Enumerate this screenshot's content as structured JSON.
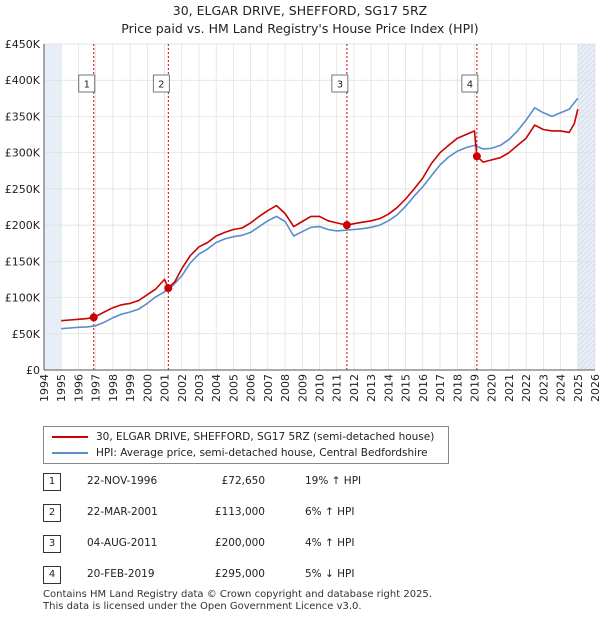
{
  "title_line1": "30, ELGAR DRIVE, SHEFFORD, SG17 5RZ",
  "title_line2": "Price paid vs. HM Land Registry's House Price Index (HPI)",
  "colors": {
    "property": "#cc0000",
    "hpi": "#5b8ccc",
    "marker": "#cc0000",
    "vline": "#cc0000",
    "shade": "#e8eef7"
  },
  "chart_data": {
    "type": "line",
    "xlim": [
      1994,
      2026
    ],
    "ylim": [
      0,
      450000
    ],
    "x_ticks": [
      1994,
      1995,
      1996,
      1997,
      1998,
      1999,
      2000,
      2001,
      2002,
      2003,
      2004,
      2005,
      2006,
      2007,
      2008,
      2009,
      2010,
      2011,
      2012,
      2013,
      2014,
      2015,
      2016,
      2017,
      2018,
      2019,
      2020,
      2021,
      2022,
      2023,
      2024,
      2025,
      2026
    ],
    "y_ticks": [
      {
        "value": 0,
        "label": "£0"
      },
      {
        "value": 50000,
        "label": "£50K"
      },
      {
        "value": 100000,
        "label": "£100K"
      },
      {
        "value": 150000,
        "label": "£150K"
      },
      {
        "value": 200000,
        "label": "£200K"
      },
      {
        "value": 250000,
        "label": "£250K"
      },
      {
        "value": 300000,
        "label": "£300K"
      },
      {
        "value": 350000,
        "label": "£350K"
      },
      {
        "value": 400000,
        "label": "£400K"
      },
      {
        "value": 450000,
        "label": "£450K"
      }
    ],
    "shaded_before": 1995,
    "shaded_after": 2025.0,
    "series": [
      {
        "name": "30, ELGAR DRIVE, SHEFFORD, SG17 5RZ (semi-detached house)",
        "color_key": "property",
        "x": [
          1995.0,
          1995.5,
          1996.0,
          1996.5,
          1996.9,
          1997.5,
          1998.0,
          1998.5,
          1999.0,
          1999.5,
          2000.0,
          2000.5,
          2001.0,
          2001.22,
          2001.6,
          2002.0,
          2002.5,
          2003.0,
          2003.5,
          2004.0,
          2004.5,
          2005.0,
          2005.5,
          2006.0,
          2006.5,
          2007.0,
          2007.5,
          2008.0,
          2008.5,
          2009.0,
          2009.5,
          2010.0,
          2010.5,
          2011.0,
          2011.6,
          2012.0,
          2012.5,
          2013.0,
          2013.5,
          2014.0,
          2014.5,
          2015.0,
          2015.5,
          2016.0,
          2016.5,
          2017.0,
          2017.5,
          2018.0,
          2018.5,
          2019.0,
          2019.14,
          2019.5,
          2020.0,
          2020.5,
          2021.0,
          2021.5,
          2022.0,
          2022.5,
          2023.0,
          2023.5,
          2024.0,
          2024.5,
          2024.8,
          2025.0
        ],
        "y": [
          68000,
          69000,
          70000,
          71000,
          72650,
          80000,
          86000,
          90000,
          92000,
          96000,
          104000,
          112000,
          125000,
          113000,
          122000,
          140000,
          158000,
          170000,
          176000,
          185000,
          190000,
          194000,
          196000,
          203000,
          212000,
          220000,
          227000,
          216000,
          198000,
          205000,
          212000,
          212000,
          206000,
          203000,
          200000,
          202000,
          204000,
          206000,
          209000,
          215000,
          224000,
          236000,
          250000,
          265000,
          285000,
          300000,
          310000,
          320000,
          325000,
          330000,
          295000,
          287000,
          290000,
          293000,
          300000,
          310000,
          320000,
          338000,
          332000,
          330000,
          330000,
          328000,
          340000,
          360000
        ]
      },
      {
        "name": "HPI: Average price, semi-detached house, Central Bedfordshire",
        "color_key": "hpi",
        "x": [
          1995.0,
          1995.5,
          1996.0,
          1996.5,
          1997.0,
          1997.5,
          1998.0,
          1998.5,
          1999.0,
          1999.5,
          2000.0,
          2000.5,
          2001.0,
          2001.5,
          2002.0,
          2002.5,
          2003.0,
          2003.5,
          2004.0,
          2004.5,
          2005.0,
          2005.5,
          2006.0,
          2006.5,
          2007.0,
          2007.5,
          2008.0,
          2008.5,
          2009.0,
          2009.5,
          2010.0,
          2010.5,
          2011.0,
          2011.5,
          2012.0,
          2012.5,
          2013.0,
          2013.5,
          2014.0,
          2014.5,
          2015.0,
          2015.5,
          2016.0,
          2016.5,
          2017.0,
          2017.5,
          2018.0,
          2018.5,
          2019.0,
          2019.5,
          2020.0,
          2020.5,
          2021.0,
          2021.5,
          2022.0,
          2022.5,
          2023.0,
          2023.5,
          2024.0,
          2024.5,
          2025.0
        ],
        "y": [
          57000,
          58000,
          59000,
          59500,
          61000,
          66000,
          72000,
          77000,
          80000,
          84000,
          92000,
          101000,
          108000,
          117000,
          130000,
          148000,
          160000,
          167000,
          176000,
          181000,
          184000,
          186000,
          190000,
          198000,
          206000,
          212000,
          205000,
          185000,
          191000,
          197000,
          198000,
          194000,
          192000,
          193000,
          194000,
          195000,
          197000,
          200000,
          206000,
          214000,
          226000,
          240000,
          253000,
          268000,
          283000,
          294000,
          302000,
          307000,
          310000,
          305000,
          306000,
          310000,
          318000,
          330000,
          345000,
          362000,
          355000,
          350000,
          355000,
          360000,
          375000
        ]
      }
    ],
    "transactions": [
      {
        "num": "1",
        "date": "22-NOV-1996",
        "x": 1996.89,
        "price_value": 72650,
        "price": "£72,650",
        "hpi": "19% ↑ HPI"
      },
      {
        "num": "2",
        "date": "22-MAR-2001",
        "x": 2001.22,
        "price_value": 113000,
        "price": "£113,000",
        "hpi": "6% ↑ HPI"
      },
      {
        "num": "3",
        "date": "04-AUG-2011",
        "x": 2011.59,
        "price_value": 200000,
        "price": "£200,000",
        "hpi": "4% ↑ HPI"
      },
      {
        "num": "4",
        "date": "20-FEB-2019",
        "x": 2019.14,
        "price_value": 295000,
        "price": "£295,000",
        "hpi": "5% ↓ HPI"
      }
    ]
  },
  "legend": {
    "property_label": "30, ELGAR DRIVE, SHEFFORD, SG17 5RZ (semi-detached house)",
    "hpi_label": "HPI: Average price, semi-detached house, Central Bedfordshire"
  },
  "footer_line1": "Contains HM Land Registry data © Crown copyright and database right 2025.",
  "footer_line2": "This data is licensed under the Open Government Licence v3.0."
}
